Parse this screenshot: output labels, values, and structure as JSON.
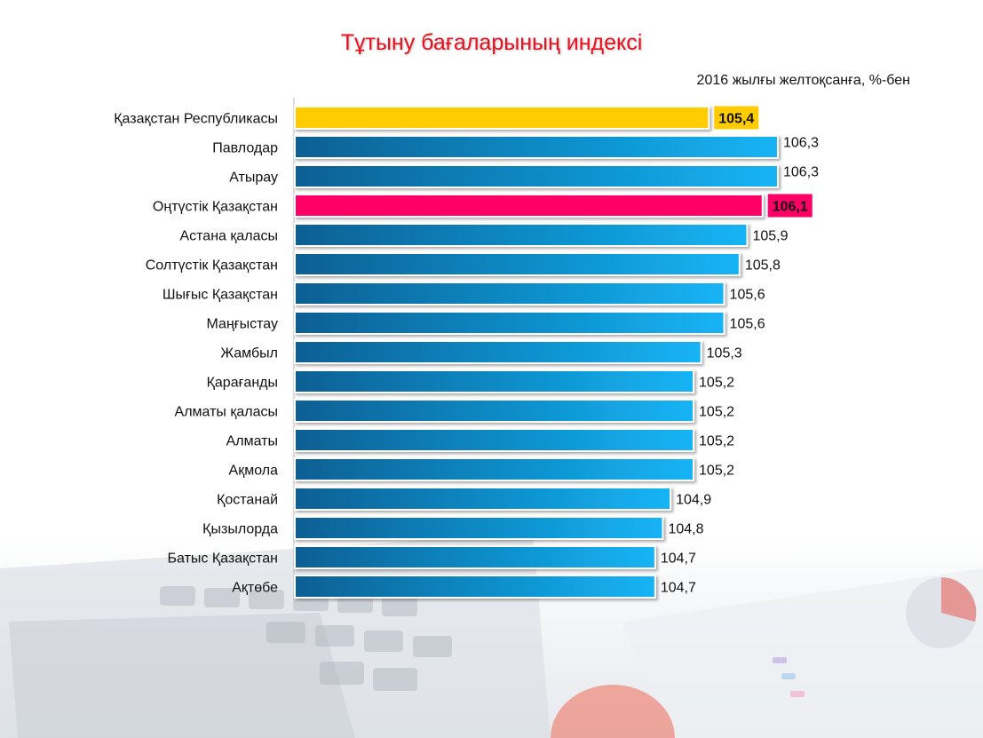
{
  "chart_data": {
    "type": "bar",
    "orientation": "horizontal",
    "title": "Тұтыну бағаларының индексі",
    "subtitle": "2016 жылғы желтоқсанға, %-бен",
    "categories": [
      "Қазақстан Республикасы",
      "Павлодар",
      "Атырау",
      "Оңтүстік Қазақстан",
      "Астана қаласы",
      "Солтүстік Қазақстан",
      "Шығыс Қазақстан",
      "Маңғыстау",
      "Жамбыл",
      "Қарағанды",
      "Алматы қаласы",
      "Алматы",
      "Ақмола",
      "Қостанай",
      "Қызылорда",
      "Батыс Қазақстан",
      "Ақтөбе"
    ],
    "values": [
      105.4,
      106.3,
      106.3,
      106.1,
      105.9,
      105.8,
      105.6,
      105.6,
      105.3,
      105.2,
      105.2,
      105.2,
      105.2,
      104.9,
      104.8,
      104.7,
      104.7
    ],
    "value_labels": [
      "105,4",
      "106,3",
      "106,3",
      "106,1",
      "105,9",
      "105,8",
      "105,6",
      "105,6",
      "105,3",
      "105,2",
      "105,2",
      "105,2",
      "105,2",
      "104,9",
      "104,8",
      "104,7",
      "104,7"
    ],
    "highlight": {
      "0": "#ffcc00",
      "3": "#ff0066"
    },
    "bar_gradient": [
      "#0a5f93",
      "#14b4f5"
    ],
    "grid": false,
    "legend": "none"
  }
}
